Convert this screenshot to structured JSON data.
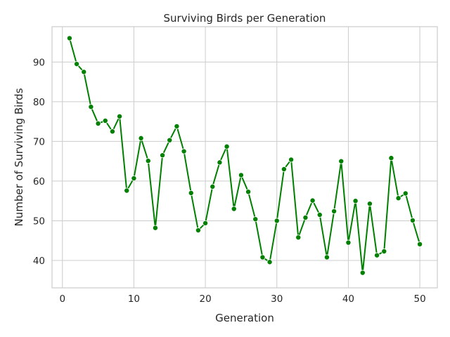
{
  "chart_data": {
    "type": "line",
    "title": "Surviving Birds per Generation",
    "xlabel": "Generation",
    "ylabel": "Number of Surviving Birds",
    "xlim": [
      -1.45,
      52.45
    ],
    "ylim": [
      33.1,
      98.9
    ],
    "xticks": [
      0,
      10,
      20,
      30,
      40,
      50
    ],
    "yticks": [
      40,
      50,
      60,
      70,
      80,
      90
    ],
    "grid": true,
    "line_color": "#008000",
    "marker_color": "#008000",
    "series": [
      {
        "x": [
          1,
          2,
          3,
          4,
          5,
          6,
          7,
          8,
          9,
          10,
          11,
          12,
          13,
          14,
          15,
          16,
          17,
          18,
          19,
          20,
          21,
          22,
          23,
          24,
          25,
          26,
          27,
          28,
          29,
          30,
          31,
          32,
          33,
          34,
          35,
          36,
          37,
          38,
          39,
          40,
          41,
          42,
          43,
          44,
          45,
          46,
          47,
          48,
          49,
          50
        ],
        "values": [
          96.0,
          89.5,
          87.5,
          78.7,
          74.5,
          75.2,
          72.5,
          76.3,
          57.6,
          60.7,
          70.8,
          65.1,
          48.2,
          66.5,
          70.3,
          73.8,
          67.5,
          57.0,
          47.6,
          49.4,
          58.6,
          64.7,
          68.7,
          53.0,
          61.5,
          57.3,
          50.4,
          40.8,
          39.6,
          50.0,
          63.0,
          65.4,
          45.8,
          50.8,
          55.1,
          51.5,
          40.8,
          52.4,
          65.0,
          44.5,
          55.0,
          36.9,
          54.3,
          41.3,
          42.3,
          65.8,
          55.7,
          56.9,
          50.1,
          44.1
        ]
      }
    ]
  }
}
